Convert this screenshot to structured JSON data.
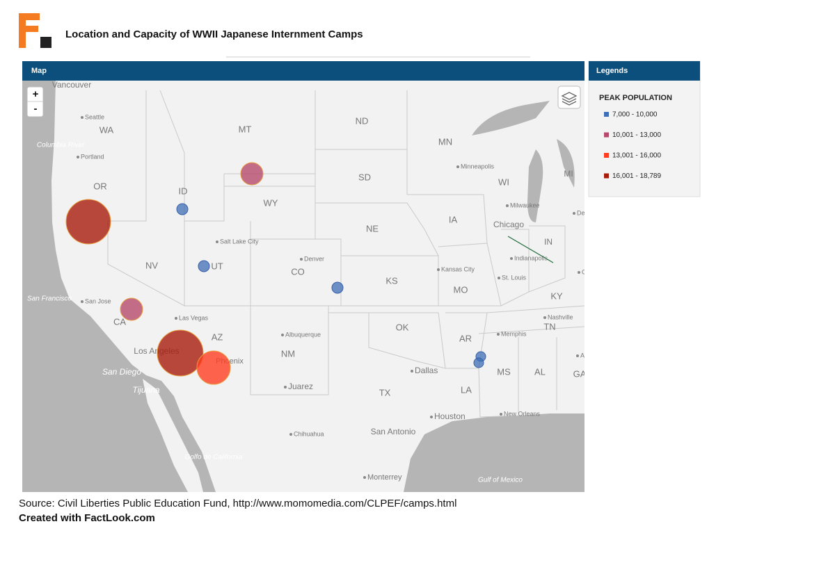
{
  "header": {
    "title": "Location and Capacity of WWII Japanese Internment Camps"
  },
  "map_panel": {
    "title": "Map",
    "zoom_in": "+",
    "zoom_out": "-"
  },
  "legend_panel": {
    "title": "Legends",
    "heading": "PEAK POPULATION",
    "items": [
      {
        "label": "7,000 - 10,000",
        "color": "#3f6fb6"
      },
      {
        "label": "10,001 - 13,000",
        "color": "#b64a6c"
      },
      {
        "label": "13,001 - 16,000",
        "color": "#ff3d22"
      },
      {
        "label": "16,001 - 18,789",
        "color": "#a71b0b"
      }
    ]
  },
  "map_labels": [
    "Vancouver",
    "Seattle",
    "WA",
    "Columbia River",
    "Portland",
    "OR",
    "ID",
    "MT",
    "ND",
    "MN",
    "Minneapolis",
    "SD",
    "WY",
    "WI",
    "MI",
    "Milwaukee",
    "Detroit",
    "Chicago",
    "NE",
    "IA",
    "IN",
    "Salt Lake City",
    "Denver",
    "NV",
    "UT",
    "CO",
    "Kansas City",
    "Indianapolis",
    "St. Louis",
    "Cinc",
    "MO",
    "KS",
    "KY",
    "San Francisco",
    "San Jose",
    "CA",
    "Las Vegas",
    "Nashville",
    "OK",
    "TN",
    "Memphis",
    "AR",
    "AZ",
    "Albuquerque",
    "Los Angeles",
    "Phoenix",
    "NM",
    "Atla",
    "San Diego",
    "Dallas",
    "MS",
    "AL",
    "GA",
    "Juarez",
    "Tijuana",
    "LA",
    "TX",
    "Houston",
    "New Orleans",
    "San Antonio",
    "Chihuahua",
    "Golfo de California",
    "Monterrey",
    "Gulf of Mexico"
  ],
  "footer": {
    "source": "Source: Civil Liberties Public Education Fund, http://www.momomedia.com/CLPEF/camps.html",
    "credit": "Created with FactLook.com"
  }
}
